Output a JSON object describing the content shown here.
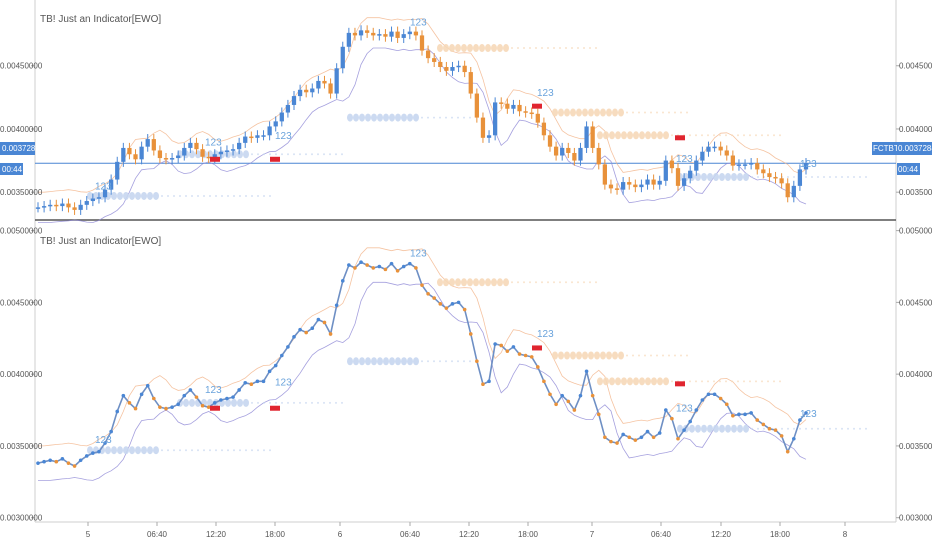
{
  "panes": [
    {
      "title": "TB! Just an Indicator[EWO]"
    },
    {
      "title": "TB! Just an Indicator[EWO]"
    }
  ],
  "price_tag": {
    "symbol": "FCTBTC",
    "value": "0.00372847",
    "timer": "00:44"
  },
  "colors": {
    "up": "#4a86d4",
    "down": "#e8913a",
    "line": "#6e8fc4",
    "upper_band": "#f2b48a",
    "lower_band": "#8e88d6",
    "signal_red": "#e0252f",
    "last_price": "#4a86d4",
    "blue_dots": "#c6d6f0",
    "orange_dots": "#f6d8b8"
  },
  "count_labels": [
    "1",
    "2",
    "3"
  ],
  "chart_data": [
    {
      "type": "candlestick",
      "title": "",
      "y_tick_labels": [
        "0.00450000",
        "0.00400000",
        "0.00350000"
      ],
      "ylim": [
        0.00328,
        0.00502
      ],
      "last_price": 0.00372847,
      "grid": false,
      "x_tick_labels": [
        "5",
        "06:40",
        "12:20",
        "18:00",
        "6",
        "06:40",
        "12:20",
        "18:00",
        "7",
        "06:40",
        "12:20",
        "18:00",
        "8"
      ],
      "close_series": [
        0.00338,
        0.00339,
        0.0034,
        0.00339,
        0.00341,
        0.00338,
        0.00336,
        0.0034,
        0.00343,
        0.00345,
        0.00346,
        0.00352,
        0.0036,
        0.00374,
        0.00385,
        0.0038,
        0.00376,
        0.00386,
        0.00392,
        0.00383,
        0.00377,
        0.00376,
        0.00377,
        0.00379,
        0.00385,
        0.00389,
        0.00384,
        0.00378,
        0.00377,
        0.0038,
        0.00382,
        0.00383,
        0.00384,
        0.00389,
        0.00394,
        0.00393,
        0.00395,
        0.00395,
        0.00402,
        0.00406,
        0.00413,
        0.00419,
        0.00426,
        0.00431,
        0.00429,
        0.00432,
        0.00438,
        0.00436,
        0.00428,
        0.00448,
        0.00465,
        0.00476,
        0.00474,
        0.00478,
        0.00476,
        0.00474,
        0.00475,
        0.00473,
        0.00477,
        0.00472,
        0.00475,
        0.00477,
        0.00474,
        0.00462,
        0.00456,
        0.00453,
        0.00449,
        0.00446,
        0.00449,
        0.0045,
        0.00445,
        0.00428,
        0.00409,
        0.00393,
        0.00395,
        0.00421,
        0.0042,
        0.00416,
        0.00419,
        0.00414,
        0.00413,
        0.00412,
        0.00405,
        0.00395,
        0.00386,
        0.00379,
        0.00385,
        0.00381,
        0.00375,
        0.00385,
        0.00402,
        0.00385,
        0.00372,
        0.00356,
        0.00353,
        0.00352,
        0.00358,
        0.00356,
        0.00354,
        0.00356,
        0.0036,
        0.00356,
        0.00359,
        0.00375,
        0.00369,
        0.00355,
        0.00361,
        0.00367,
        0.00375,
        0.00382,
        0.00386,
        0.00386,
        0.00383,
        0.00379,
        0.00371,
        0.00372,
        0.00372,
        0.00373,
        0.00368,
        0.00365,
        0.00362,
        0.00361,
        0.00357,
        0.00346,
        0.00355,
        0.00368,
        0.00373
      ]
    },
    {
      "type": "line",
      "title": "",
      "y_tick_labels": [
        "0.00500000",
        "0.00450000",
        "0.00400000",
        "0.00350000",
        "0.00300000"
      ],
      "ylim": [
        0.00297,
        0.00506
      ],
      "grid": false,
      "x_tick_labels": [
        "5",
        "06:40",
        "12:20",
        "18:00",
        "6",
        "06:40",
        "12:20",
        "18:00",
        "7",
        "06:40",
        "12:20",
        "18:00",
        "8"
      ],
      "series_same_as_top_close": true
    }
  ]
}
